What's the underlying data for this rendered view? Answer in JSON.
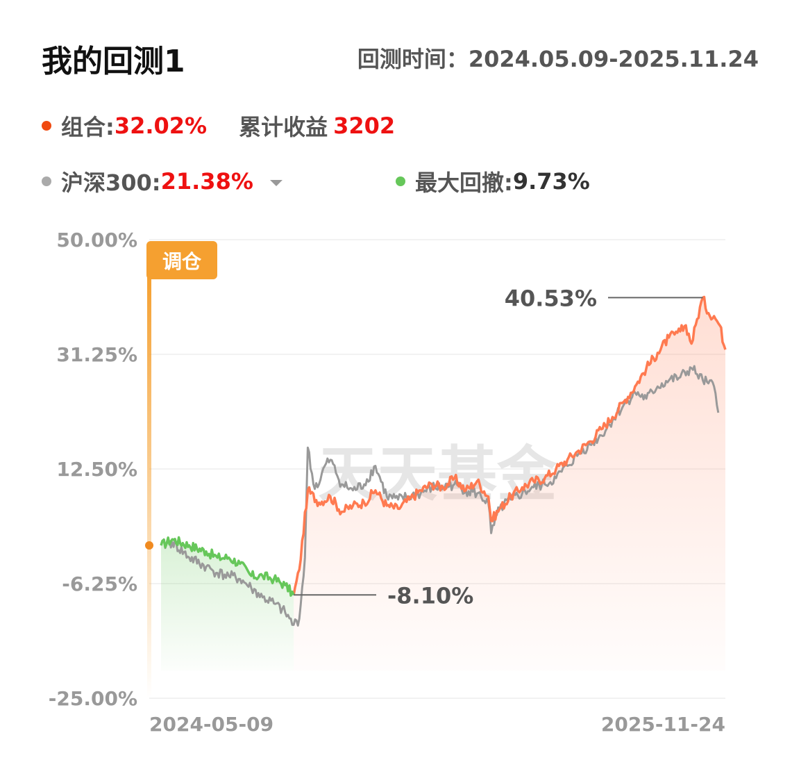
{
  "header": {
    "title": "我的回测1",
    "period": "回测时间：2024.05.09-2025.11.24"
  },
  "stats": {
    "portfolio_label": "组合:",
    "portfolio_value": "32.02%",
    "cum_label": "累计收益",
    "cum_value": "3202",
    "benchmark_label": "沪深300:",
    "benchmark_value": "21.38%",
    "drawdown_label": "最大回撤:",
    "drawdown_value": "9.73%"
  },
  "colors": {
    "portfolio": "#ff7a50",
    "benchmark": "#999999",
    "drawdown": "#66c75a",
    "rebalance": "#f5a030",
    "portfolio_dot": "#f04a10",
    "value_red": "#ee1111"
  },
  "watermark": "天天基金",
  "chart_data": {
    "type": "line",
    "x_start": "2024-05-09",
    "x_end": "2025-11-24",
    "x_tick_labels": [
      "2024-05-09",
      "2025-11-24"
    ],
    "y_tick_labels": [
      "50.00%",
      "31.25%",
      "12.50%",
      "-6.25%",
      "-25.00%"
    ],
    "ylim": [
      -25,
      50
    ],
    "grid": true,
    "rebalance_label": "调仓",
    "annotations": [
      {
        "text": "40.53%",
        "kind": "max"
      },
      {
        "text": "-8.10%",
        "kind": "min"
      }
    ],
    "series": [
      {
        "key": "portfolio",
        "t": [
          0,
          0.02,
          0.05,
          0.08,
          0.1,
          0.12,
          0.14,
          0.16,
          0.18,
          0.2,
          0.22,
          0.235,
          0.245,
          0.26,
          0.28,
          0.3,
          0.32,
          0.34,
          0.36,
          0.38,
          0.4,
          0.42,
          0.44,
          0.46,
          0.48,
          0.5,
          0.52,
          0.54,
          0.56,
          0.58,
          0.585,
          0.6,
          0.62,
          0.64,
          0.66,
          0.68,
          0.7,
          0.72,
          0.74,
          0.76,
          0.78,
          0.8,
          0.82,
          0.84,
          0.86,
          0.88,
          0.9,
          0.91,
          0.92,
          0.93,
          0.94,
          0.95,
          0.96,
          0.97,
          0.98,
          0.99,
          1.0
        ],
        "v": [
          0,
          1,
          0,
          -1,
          -2,
          -2,
          -3,
          -5,
          -5,
          -5.5,
          -6.5,
          -8.1,
          -4,
          9,
          7,
          8,
          5.5,
          6.5,
          7,
          9,
          6.5,
          6,
          7.5,
          9,
          10,
          9.5,
          11,
          9,
          10.5,
          8,
          4,
          6,
          8,
          9.5,
          10.5,
          11,
          12.5,
          14,
          15.5,
          17,
          19,
          21,
          23.5,
          26,
          29,
          31.5,
          34,
          34.5,
          35,
          36,
          33,
          37,
          40.53,
          38,
          37.5,
          36,
          32.02
        ]
      },
      {
        "key": "benchmark",
        "t": [
          0,
          0.02,
          0.05,
          0.08,
          0.1,
          0.12,
          0.14,
          0.16,
          0.18,
          0.2,
          0.22,
          0.235,
          0.245,
          0.255,
          0.26,
          0.27,
          0.28,
          0.29,
          0.3,
          0.32,
          0.34,
          0.36,
          0.38,
          0.4,
          0.42,
          0.44,
          0.46,
          0.48,
          0.5,
          0.52,
          0.54,
          0.56,
          0.58,
          0.585,
          0.6,
          0.62,
          0.64,
          0.66,
          0.68,
          0.7,
          0.72,
          0.74,
          0.76,
          0.78,
          0.8,
          0.82,
          0.84,
          0.86,
          0.88,
          0.9,
          0.92,
          0.94,
          0.95,
          0.96,
          0.97,
          0.98,
          0.99,
          1.0
        ],
        "v": [
          0,
          0.5,
          -2,
          -3.5,
          -4.5,
          -5,
          -5.5,
          -7,
          -8.5,
          -9.5,
          -11,
          -13,
          -12,
          -2,
          16,
          10,
          10,
          13,
          14,
          10,
          9,
          10,
          13,
          8,
          7.5,
          8,
          8.5,
          9.5,
          9.5,
          10,
          9,
          8.5,
          7,
          2,
          6,
          7.5,
          8.5,
          9.5,
          10,
          11,
          13,
          15,
          16.5,
          18,
          20.5,
          23,
          25,
          24,
          26,
          27,
          27.5,
          29,
          28,
          27,
          26.5,
          26,
          21.38
        ]
      }
    ]
  }
}
